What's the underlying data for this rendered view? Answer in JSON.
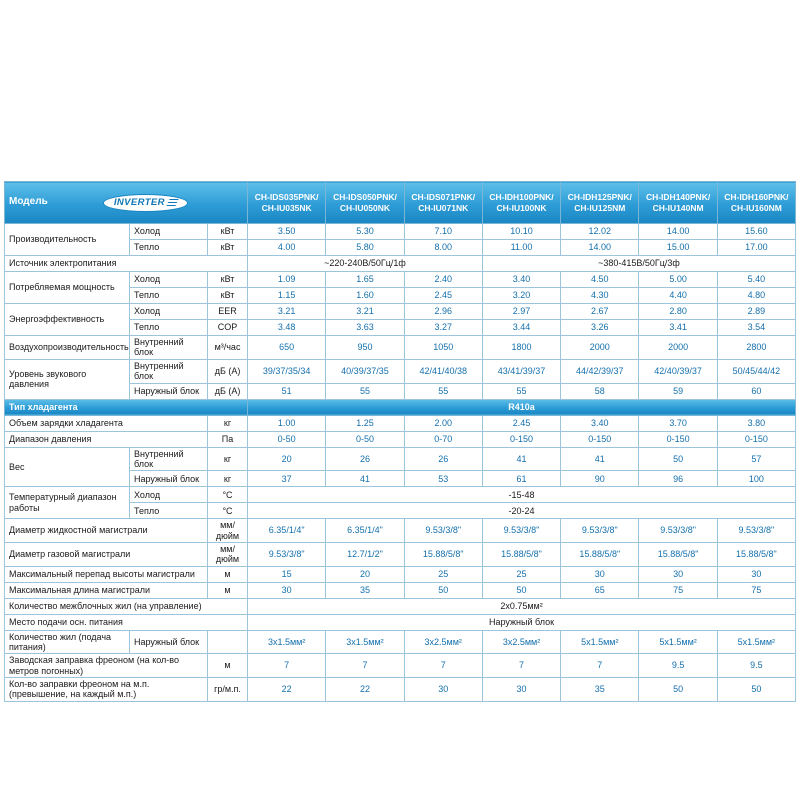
{
  "colors": {
    "header_gradient_top": "#5ebfe9",
    "header_gradient_bottom": "#1a86c2",
    "border": "#9cc4db",
    "value_text": "#1470ad",
    "label_text": "#1a1a1a",
    "header_text": "#ffffff"
  },
  "header": {
    "model_label": "Модель",
    "logo_text": "INVERTER",
    "models": [
      "CH-IDS035PNK/\nCH-IU035NK",
      "CH-IDS050PNK/\nCH-IU050NK",
      "CH-IDS071PNK/\nCH-IU071NK",
      "CH-IDH100PNK/\nCH-IU100NK",
      "CH-IDH125PNK/\nCH-IU125NM",
      "CH-IDH140PNK/\nCH-IU140NM",
      "CH-IDH160PNK/\nCH-IU160NM"
    ]
  },
  "rows": [
    {
      "cells": [
        {
          "t": "Производительность",
          "c": "label",
          "rs": 2
        },
        {
          "t": "Холод",
          "c": "sub"
        },
        {
          "t": "кВт",
          "c": "unit"
        },
        {
          "t": "3.50",
          "c": "val"
        },
        {
          "t": "5.30",
          "c": "val"
        },
        {
          "t": "7.10",
          "c": "val"
        },
        {
          "t": "10.10",
          "c": "val"
        },
        {
          "t": "12.02",
          "c": "val"
        },
        {
          "t": "14.00",
          "c": "val"
        },
        {
          "t": "15.60",
          "c": "val"
        }
      ]
    },
    {
      "cells": [
        {
          "t": "Тепло",
          "c": "sub"
        },
        {
          "t": "кВт",
          "c": "unit"
        },
        {
          "t": "4.00",
          "c": "val"
        },
        {
          "t": "5.80",
          "c": "val"
        },
        {
          "t": "8.00",
          "c": "val"
        },
        {
          "t": "11.00",
          "c": "val"
        },
        {
          "t": "14.00",
          "c": "val"
        },
        {
          "t": "15.00",
          "c": "val"
        },
        {
          "t": "17.00",
          "c": "val"
        }
      ]
    },
    {
      "cells": [
        {
          "t": "Источник электропитания",
          "c": "label",
          "cs": 3
        },
        {
          "t": "~220-240В/50Гц/1ф",
          "c": "span",
          "cs": 3
        },
        {
          "t": "~380-415В/50Гц/3ф",
          "c": "span",
          "cs": 4
        }
      ]
    },
    {
      "cells": [
        {
          "t": "Потребляемая мощность",
          "c": "label",
          "rs": 2
        },
        {
          "t": "Холод",
          "c": "sub"
        },
        {
          "t": "кВт",
          "c": "unit"
        },
        {
          "t": "1.09",
          "c": "val"
        },
        {
          "t": "1.65",
          "c": "val"
        },
        {
          "t": "2.40",
          "c": "val"
        },
        {
          "t": "3.40",
          "c": "val"
        },
        {
          "t": "4.50",
          "c": "val"
        },
        {
          "t": "5.00",
          "c": "val"
        },
        {
          "t": "5.40",
          "c": "val"
        }
      ]
    },
    {
      "cells": [
        {
          "t": "Тепло",
          "c": "sub"
        },
        {
          "t": "кВт",
          "c": "unit"
        },
        {
          "t": "1.15",
          "c": "val"
        },
        {
          "t": "1.60",
          "c": "val"
        },
        {
          "t": "2.45",
          "c": "val"
        },
        {
          "t": "3.20",
          "c": "val"
        },
        {
          "t": "4.30",
          "c": "val"
        },
        {
          "t": "4.40",
          "c": "val"
        },
        {
          "t": "4.80",
          "c": "val"
        }
      ]
    },
    {
      "cells": [
        {
          "t": "Энергоэффективность",
          "c": "label",
          "rs": 2
        },
        {
          "t": "Холод",
          "c": "sub"
        },
        {
          "t": "EER",
          "c": "unit"
        },
        {
          "t": "3.21",
          "c": "val"
        },
        {
          "t": "3.21",
          "c": "val"
        },
        {
          "t": "2.96",
          "c": "val"
        },
        {
          "t": "2.97",
          "c": "val"
        },
        {
          "t": "2.67",
          "c": "val"
        },
        {
          "t": "2.80",
          "c": "val"
        },
        {
          "t": "2.89",
          "c": "val"
        }
      ]
    },
    {
      "cells": [
        {
          "t": "Тепло",
          "c": "sub"
        },
        {
          "t": "COP",
          "c": "unit"
        },
        {
          "t": "3.48",
          "c": "val"
        },
        {
          "t": "3.63",
          "c": "val"
        },
        {
          "t": "3.27",
          "c": "val"
        },
        {
          "t": "3.44",
          "c": "val"
        },
        {
          "t": "3.26",
          "c": "val"
        },
        {
          "t": "3.41",
          "c": "val"
        },
        {
          "t": "3.54",
          "c": "val"
        }
      ]
    },
    {
      "cells": [
        {
          "t": "Воздухопроизводительность",
          "c": "label"
        },
        {
          "t": "Внутренний блок",
          "c": "sub"
        },
        {
          "t": "м³/час",
          "c": "unit"
        },
        {
          "t": "650",
          "c": "val"
        },
        {
          "t": "950",
          "c": "val"
        },
        {
          "t": "1050",
          "c": "val"
        },
        {
          "t": "1800",
          "c": "val"
        },
        {
          "t": "2000",
          "c": "val"
        },
        {
          "t": "2000",
          "c": "val"
        },
        {
          "t": "2800",
          "c": "val"
        }
      ]
    },
    {
      "cells": [
        {
          "t": "Уровень звукового давления",
          "c": "label",
          "rs": 2
        },
        {
          "t": "Внутренний блок",
          "c": "sub"
        },
        {
          "t": "дБ (А)",
          "c": "unit"
        },
        {
          "t": "39/37/35/34",
          "c": "val"
        },
        {
          "t": "40/39/37/35",
          "c": "val"
        },
        {
          "t": "42/41/40/38",
          "c": "val"
        },
        {
          "t": "43/41/39/37",
          "c": "val"
        },
        {
          "t": "44/42/39/37",
          "c": "val"
        },
        {
          "t": "42/40/39/37",
          "c": "val"
        },
        {
          "t": "50/45/44/42",
          "c": "val"
        }
      ]
    },
    {
      "cells": [
        {
          "t": "Наружный блок",
          "c": "sub"
        },
        {
          "t": "дБ (А)",
          "c": "unit"
        },
        {
          "t": "51",
          "c": "val"
        },
        {
          "t": "55",
          "c": "val"
        },
        {
          "t": "55",
          "c": "val"
        },
        {
          "t": "55",
          "c": "val"
        },
        {
          "t": "58",
          "c": "val"
        },
        {
          "t": "59",
          "c": "val"
        },
        {
          "t": "60",
          "c": "val"
        }
      ]
    },
    {
      "cls": "refrigerant",
      "cells": [
        {
          "t": "Тип хладагента",
          "c": "bluelabel",
          "cs": 3
        },
        {
          "t": "R410a",
          "c": "blueval",
          "cs": 7
        }
      ]
    },
    {
      "cells": [
        {
          "t": "Объем зарядки хладагента",
          "c": "label",
          "cs": 2
        },
        {
          "t": "кг",
          "c": "unit"
        },
        {
          "t": "1.00",
          "c": "val"
        },
        {
          "t": "1.25",
          "c": "val"
        },
        {
          "t": "2.00",
          "c": "val"
        },
        {
          "t": "2.45",
          "c": "val"
        },
        {
          "t": "3.40",
          "c": "val"
        },
        {
          "t": "3.70",
          "c": "val"
        },
        {
          "t": "3.80",
          "c": "val"
        }
      ]
    },
    {
      "cells": [
        {
          "t": "Диапазон давления",
          "c": "label",
          "cs": 2
        },
        {
          "t": "Па",
          "c": "unit"
        },
        {
          "t": "0-50",
          "c": "val"
        },
        {
          "t": "0-50",
          "c": "val"
        },
        {
          "t": "0-70",
          "c": "val"
        },
        {
          "t": "0-150",
          "c": "val"
        },
        {
          "t": "0-150",
          "c": "val"
        },
        {
          "t": "0-150",
          "c": "val"
        },
        {
          "t": "0-150",
          "c": "val"
        }
      ]
    },
    {
      "cells": [
        {
          "t": "Вес",
          "c": "label",
          "rs": 2
        },
        {
          "t": "Внутренний блок",
          "c": "sub"
        },
        {
          "t": "кг",
          "c": "unit"
        },
        {
          "t": "20",
          "c": "val"
        },
        {
          "t": "26",
          "c": "val"
        },
        {
          "t": "26",
          "c": "val"
        },
        {
          "t": "41",
          "c": "val"
        },
        {
          "t": "41",
          "c": "val"
        },
        {
          "t": "50",
          "c": "val"
        },
        {
          "t": "57",
          "c": "val"
        }
      ]
    },
    {
      "cells": [
        {
          "t": "Наружный блок",
          "c": "sub"
        },
        {
          "t": "кг",
          "c": "unit"
        },
        {
          "t": "37",
          "c": "val"
        },
        {
          "t": "41",
          "c": "val"
        },
        {
          "t": "53",
          "c": "val"
        },
        {
          "t": "61",
          "c": "val"
        },
        {
          "t": "90",
          "c": "val"
        },
        {
          "t": "96",
          "c": "val"
        },
        {
          "t": "100",
          "c": "val"
        }
      ]
    },
    {
      "cells": [
        {
          "t": "Температурный диапазон работы",
          "c": "label",
          "rs": 2
        },
        {
          "t": "Холод",
          "c": "sub"
        },
        {
          "t": "°С",
          "c": "unit"
        },
        {
          "t": "-15-48",
          "c": "span",
          "cs": 7
        }
      ]
    },
    {
      "cells": [
        {
          "t": "Тепло",
          "c": "sub"
        },
        {
          "t": "°С",
          "c": "unit"
        },
        {
          "t": "-20-24",
          "c": "span",
          "cs": 7
        }
      ]
    },
    {
      "cells": [
        {
          "t": "Диаметр жидкостной магистрали",
          "c": "label",
          "cs": 2
        },
        {
          "t": "мм/дюйм",
          "c": "unit"
        },
        {
          "t": "6.35/1/4\"",
          "c": "val"
        },
        {
          "t": "6.35/1/4\"",
          "c": "val"
        },
        {
          "t": "9.53/3/8\"",
          "c": "val"
        },
        {
          "t": "9.53/3/8\"",
          "c": "val"
        },
        {
          "t": "9.53/3/8\"",
          "c": "val"
        },
        {
          "t": "9.53/3/8\"",
          "c": "val"
        },
        {
          "t": "9.53/3/8\"",
          "c": "val"
        }
      ]
    },
    {
      "cells": [
        {
          "t": "Диаметр газовой магистрали",
          "c": "label",
          "cs": 2
        },
        {
          "t": "мм/дюйм",
          "c": "unit"
        },
        {
          "t": "9.53/3/8\"",
          "c": "val"
        },
        {
          "t": "12.7/1/2\"",
          "c": "val"
        },
        {
          "t": "15.88/5/8\"",
          "c": "val"
        },
        {
          "t": "15.88/5/8\"",
          "c": "val"
        },
        {
          "t": "15.88/5/8\"",
          "c": "val"
        },
        {
          "t": "15.88/5/8\"",
          "c": "val"
        },
        {
          "t": "15.88/5/8\"",
          "c": "val"
        }
      ]
    },
    {
      "cells": [
        {
          "t": "Максимальный перепад высоты магистрали",
          "c": "label",
          "cs": 2
        },
        {
          "t": "м",
          "c": "unit"
        },
        {
          "t": "15",
          "c": "val"
        },
        {
          "t": "20",
          "c": "val"
        },
        {
          "t": "25",
          "c": "val"
        },
        {
          "t": "25",
          "c": "val"
        },
        {
          "t": "30",
          "c": "val"
        },
        {
          "t": "30",
          "c": "val"
        },
        {
          "t": "30",
          "c": "val"
        }
      ]
    },
    {
      "cells": [
        {
          "t": "Максимальная длина магистрали",
          "c": "label",
          "cs": 2
        },
        {
          "t": "м",
          "c": "unit"
        },
        {
          "t": "30",
          "c": "val"
        },
        {
          "t": "35",
          "c": "val"
        },
        {
          "t": "50",
          "c": "val"
        },
        {
          "t": "50",
          "c": "val"
        },
        {
          "t": "65",
          "c": "val"
        },
        {
          "t": "75",
          "c": "val"
        },
        {
          "t": "75",
          "c": "val"
        }
      ]
    },
    {
      "cells": [
        {
          "t": "Количество межблочных жил (на управление)",
          "c": "label",
          "cs": 3
        },
        {
          "t": "2х0.75мм²",
          "c": "span",
          "cs": 7
        }
      ]
    },
    {
      "cells": [
        {
          "t": "Место подачи осн. питания",
          "c": "label",
          "cs": 3
        },
        {
          "t": "Наружный блок",
          "c": "span",
          "cs": 7
        }
      ]
    },
    {
      "cells": [
        {
          "t": "Количество жил (подача питания)",
          "c": "label"
        },
        {
          "t": "Наружный блок",
          "c": "sub"
        },
        {
          "t": "",
          "c": "unit"
        },
        {
          "t": "3х1.5мм²",
          "c": "val"
        },
        {
          "t": "3х1.5мм²",
          "c": "val"
        },
        {
          "t": "3х2.5мм²",
          "c": "val"
        },
        {
          "t": "3х2.5мм²",
          "c": "val"
        },
        {
          "t": "5х1.5мм²",
          "c": "val"
        },
        {
          "t": "5х1.5мм²",
          "c": "val"
        },
        {
          "t": "5х1.5мм²",
          "c": "val"
        }
      ]
    },
    {
      "cells": [
        {
          "t": "Заводская заправка фреоном (на кол-во метров погонных)",
          "c": "label",
          "cs": 2
        },
        {
          "t": "м",
          "c": "unit"
        },
        {
          "t": "7",
          "c": "val"
        },
        {
          "t": "7",
          "c": "val"
        },
        {
          "t": "7",
          "c": "val"
        },
        {
          "t": "7",
          "c": "val"
        },
        {
          "t": "7",
          "c": "val"
        },
        {
          "t": "9.5",
          "c": "val"
        },
        {
          "t": "9.5",
          "c": "val"
        }
      ]
    },
    {
      "cells": [
        {
          "t": "Кол-во заправки фреоном на м.п. (превышение, на каждый м.п.)",
          "c": "label",
          "cs": 2
        },
        {
          "t": "гр/м.п.",
          "c": "unit"
        },
        {
          "t": "22",
          "c": "val"
        },
        {
          "t": "22",
          "c": "val"
        },
        {
          "t": "30",
          "c": "val"
        },
        {
          "t": "30",
          "c": "val"
        },
        {
          "t": "35",
          "c": "val"
        },
        {
          "t": "50",
          "c": "val"
        },
        {
          "t": "50",
          "c": "val"
        }
      ]
    }
  ]
}
